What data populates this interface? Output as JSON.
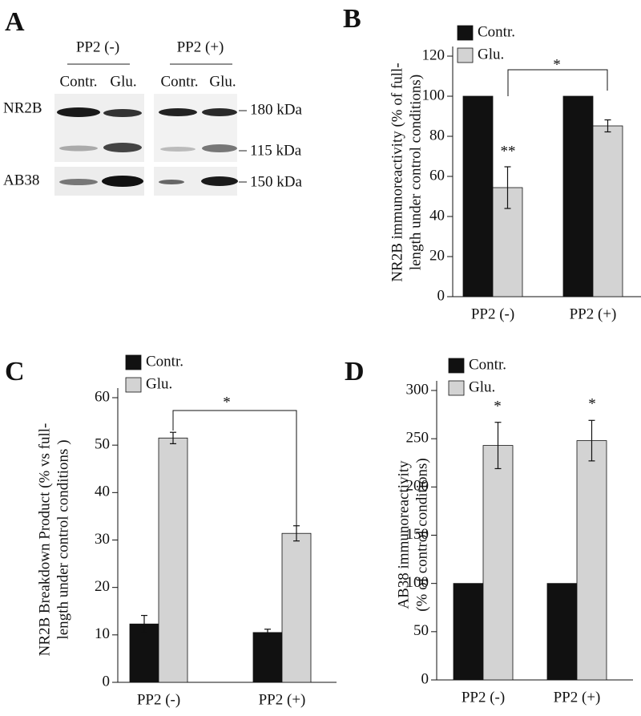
{
  "blot": {
    "panel": "A",
    "groups": [
      "PP2 (-)",
      "PP2 (+)"
    ],
    "lanes": [
      "Contr.",
      "Glu.",
      "Contr.",
      "Glu."
    ],
    "rows": [
      "NR2B",
      "AB38"
    ],
    "markers": [
      "180 kDa",
      "115 kDa",
      "150 kDa"
    ]
  },
  "chart_data": [
    {
      "type": "bar",
      "panel": "B",
      "ylabel": [
        "NR2B immunoreactivity (% of full-",
        "length under control conditions)"
      ],
      "categories": [
        "PP2 (-)",
        "PP2 (+)"
      ],
      "series": [
        {
          "name": "Contr.",
          "color": "#111111",
          "values": [
            100,
            100
          ]
        },
        {
          "name": "Glu.",
          "color": "#d3d3d3",
          "values": [
            54.4,
            85.2
          ],
          "errors": [
            10.4,
            3
          ]
        }
      ],
      "ylim": [
        0,
        120
      ],
      "yticks": [
        0,
        20,
        40,
        60,
        80,
        100,
        120
      ],
      "annotations": [
        "**",
        "*"
      ]
    },
    {
      "type": "bar",
      "panel": "C",
      "ylabel": [
        "NR2B Breakdown Product (% vs full-",
        "length under control conditions )"
      ],
      "categories": [
        "PP2 (-)",
        "PP2 (+)"
      ],
      "series": [
        {
          "name": "Contr.",
          "color": "#111111",
          "values": [
            12.3,
            10.5
          ],
          "errors": [
            1.8,
            0.7
          ]
        },
        {
          "name": "Glu.",
          "color": "#d3d3d3",
          "values": [
            51.5,
            31.4
          ],
          "errors": [
            1.2,
            1.6
          ]
        }
      ],
      "ylim": [
        0,
        60
      ],
      "yticks": [
        0,
        10,
        20,
        30,
        40,
        50,
        60
      ],
      "annotations": [
        "*"
      ]
    },
    {
      "type": "bar",
      "panel": "D",
      "ylabel": [
        "AB38 immunoreactivity",
        "(% of control conditions)"
      ],
      "categories": [
        "PP2 (-)",
        "PP2 (+)"
      ],
      "series": [
        {
          "name": "Contr.",
          "color": "#111111",
          "values": [
            100,
            100
          ]
        },
        {
          "name": "Glu.",
          "color": "#d3d3d3",
          "values": [
            243,
            248
          ],
          "errors": [
            24,
            21
          ]
        }
      ],
      "ylim": [
        0,
        300
      ],
      "yticks": [
        0,
        50,
        100,
        150,
        200,
        250,
        300
      ],
      "annotations": [
        "*",
        "*"
      ]
    }
  ]
}
